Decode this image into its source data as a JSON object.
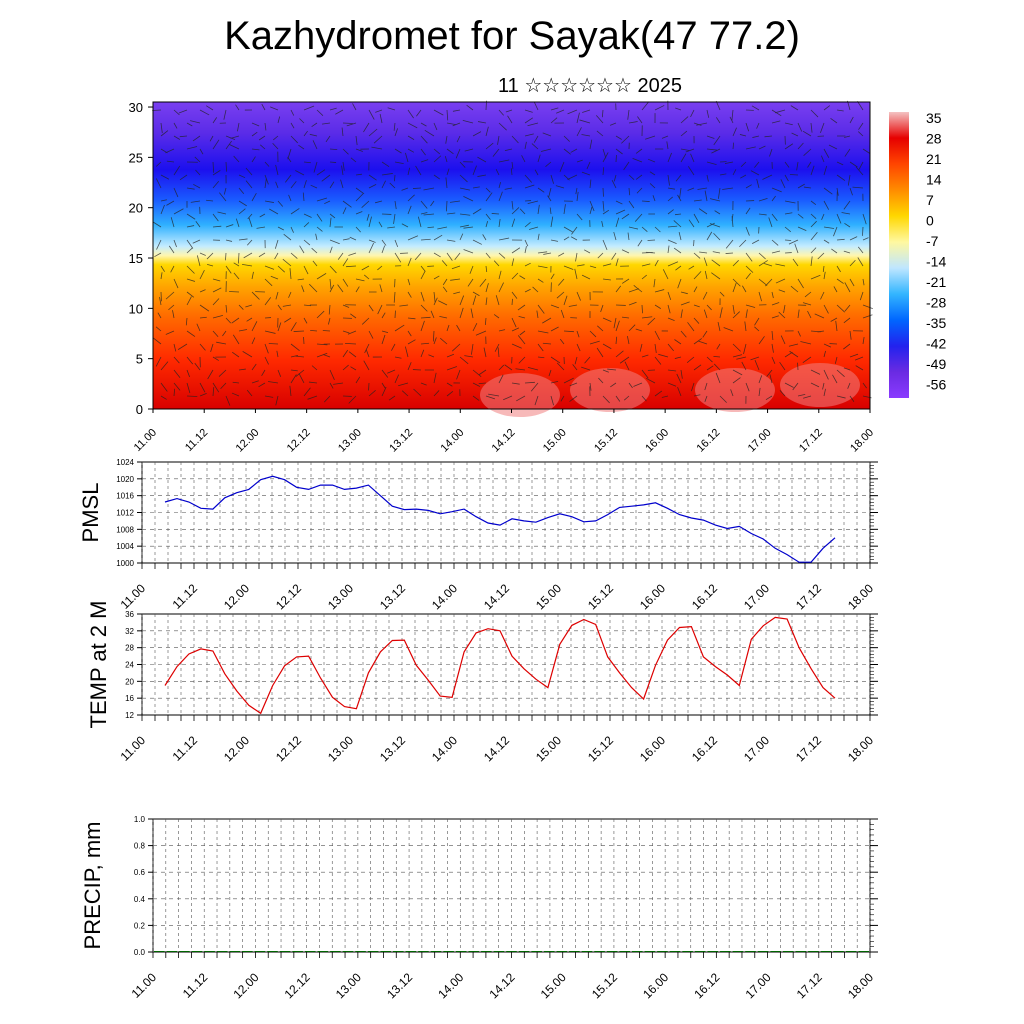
{
  "header": {
    "title": "Kazhydromet for Sayak(47 77.2)",
    "subtitle": "11 ☆☆☆☆☆☆ 2025"
  },
  "chart_data": [
    {
      "type": "heatmap",
      "title": "",
      "xlabel": "",
      "ylabel": "",
      "x_tick_labels": [
        "11.00",
        "11.12",
        "12.00",
        "12.12",
        "13.00",
        "13.12",
        "14.00",
        "14.12",
        "15.00",
        "15.12",
        "16.00",
        "16.12",
        "17.00",
        "17.12",
        "18.00"
      ],
      "y_ticks": [
        0,
        5,
        10,
        15,
        20,
        25,
        30
      ],
      "ylim": [
        0,
        30.5
      ],
      "colorbar": {
        "labels": [
          "35",
          "28",
          "21",
          "14",
          "7",
          "0",
          "-7",
          "-14",
          "-21",
          "-28",
          "-35",
          "-42",
          "-49",
          "-56"
        ],
        "stops": [
          "#f4c2c2",
          "#e60000",
          "#ff4500",
          "#ff8c00",
          "#ffd700",
          "#fff8a0",
          "#bfe6ff",
          "#33b5ff",
          "#0066ff",
          "#2222ee",
          "#6a2be2",
          "#8a3bff"
        ]
      },
      "overlay": "wind-arrows"
    },
    {
      "type": "line",
      "ylabel": "PMSL",
      "ylim": [
        1000,
        1024
      ],
      "y_ticks": [
        1000,
        1004,
        1008,
        1012,
        1016,
        1020,
        1024
      ],
      "x_tick_labels": [
        "11.00",
        "11.12",
        "12.00",
        "12.12",
        "13.00",
        "13.12",
        "14.00",
        "14.12",
        "15.00",
        "15.12",
        "16.00",
        "16.12",
        "17.00",
        "17.12",
        "18.00"
      ],
      "series": [
        {
          "color": "#0000cc",
          "values": [
            1014.5,
            1015.3,
            1014.5,
            1013.0,
            1012.8,
            1015.5,
            1016.7,
            1017.5,
            1019.8,
            1020.6,
            1019.8,
            1018.0,
            1017.5,
            1018.5,
            1018.5,
            1017.5,
            1017.8,
            1018.5,
            1016.0,
            1013.5,
            1012.7,
            1012.8,
            1012.5,
            1011.7,
            1012.2,
            1012.8,
            1011.0,
            1009.5,
            1009.0,
            1010.5,
            1010.0,
            1009.7,
            1010.8,
            1011.7,
            1011.0,
            1009.8,
            1010.0,
            1011.5,
            1013.2,
            1013.5,
            1013.8,
            1014.3,
            1013.0,
            1011.5,
            1010.7,
            1010.2,
            1009.0,
            1008.2,
            1008.7,
            1007.0,
            1005.7,
            1003.5,
            1002.0,
            1000.2,
            1000.2,
            1003.5,
            1006.0
          ]
        }
      ]
    },
    {
      "type": "line",
      "ylabel": "TEMP at 2 M",
      "ylim": [
        12,
        36
      ],
      "y_ticks": [
        12,
        16,
        20,
        24,
        28,
        32,
        36
      ],
      "x_tick_labels": [
        "11.00",
        "11.12",
        "12.00",
        "12.12",
        "13.00",
        "13.12",
        "14.00",
        "14.12",
        "15.00",
        "15.12",
        "16.00",
        "16.12",
        "17.00",
        "17.12",
        "18.00"
      ],
      "series": [
        {
          "color": "#dd0000",
          "values": [
            19.0,
            23.5,
            26.5,
            27.7,
            27.2,
            21.8,
            17.7,
            14.3,
            12.4,
            19.0,
            23.7,
            25.8,
            26.0,
            20.8,
            16.2,
            14.0,
            13.5,
            22.0,
            27.0,
            29.7,
            29.8,
            23.8,
            20.3,
            16.5,
            16.2,
            27.0,
            31.5,
            32.5,
            32.0,
            26.0,
            23.0,
            20.5,
            18.5,
            28.8,
            33.3,
            34.7,
            33.5,
            25.8,
            22.0,
            18.5,
            15.8,
            23.8,
            29.8,
            32.8,
            33.0,
            25.8,
            23.5,
            21.5,
            19.0,
            30.0,
            33.2,
            35.2,
            34.8,
            28.0,
            23.0,
            18.5,
            16.0
          ]
        }
      ]
    },
    {
      "type": "bar",
      "ylabel": "PRECIP, mm",
      "ylim": [
        0,
        1.0
      ],
      "y_ticks": [
        "0.0",
        "0.2",
        "0.4",
        "0.6",
        "0.8",
        "1.0"
      ],
      "x_tick_labels": [
        "11.00",
        "11.12",
        "12.00",
        "12.12",
        "13.00",
        "13.12",
        "14.00",
        "14.12",
        "15.00",
        "15.12",
        "16.00",
        "16.12",
        "17.00",
        "17.12",
        "18.00"
      ],
      "series": [
        {
          "color": "#006400",
          "values": [
            0,
            0,
            0,
            0,
            0,
            0,
            0,
            0,
            0,
            0,
            0,
            0,
            0,
            0,
            0,
            0,
            0,
            0,
            0,
            0,
            0,
            0,
            0,
            0,
            0,
            0,
            0,
            0,
            0,
            0,
            0,
            0,
            0,
            0,
            0,
            0,
            0,
            0,
            0,
            0,
            0,
            0,
            0,
            0,
            0,
            0,
            0,
            0,
            0,
            0,
            0,
            0,
            0,
            0,
            0,
            0,
            0
          ]
        }
      ]
    }
  ]
}
